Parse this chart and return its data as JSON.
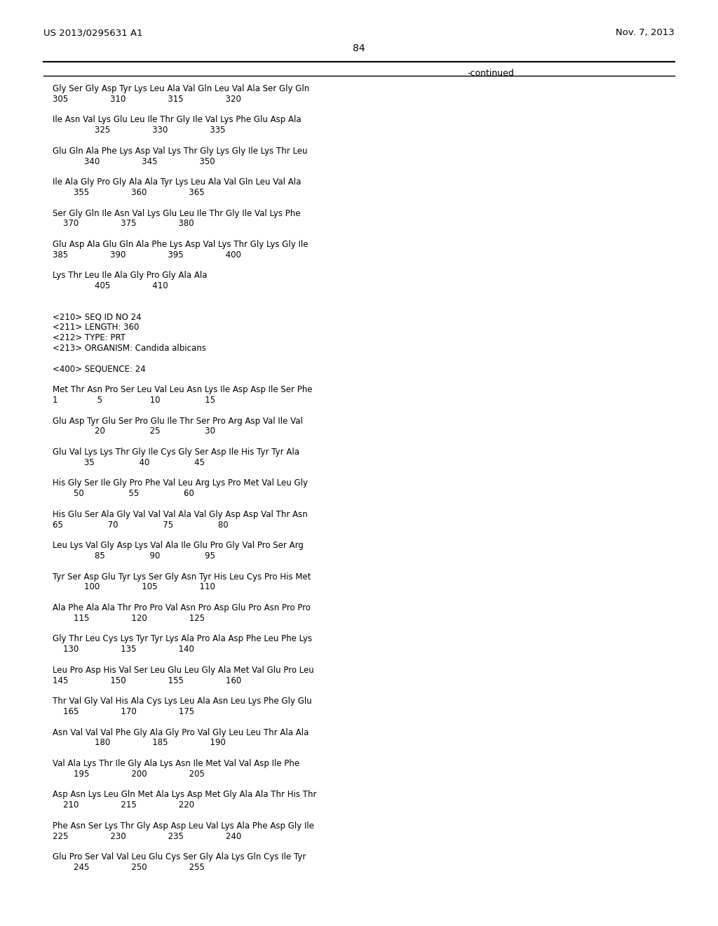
{
  "patent_number": "US 2013/0295631 A1",
  "date": "Nov. 7, 2013",
  "page_number": "84",
  "continued_label": "-continued",
  "background_color": "#ffffff",
  "text_color": "#000000",
  "content_lines": [
    "Gly Ser Gly Asp Tyr Lys Leu Ala Val Gln Leu Val Ala Ser Gly Gln",
    "305                310                315                320",
    "",
    "Ile Asn Val Lys Glu Leu Ile Thr Gly Ile Val Lys Phe Glu Asp Ala",
    "                325                330                335",
    "",
    "Glu Gln Ala Phe Lys Asp Val Lys Thr Gly Lys Gly Ile Lys Thr Leu",
    "            340                345                350",
    "",
    "Ile Ala Gly Pro Gly Ala Ala Tyr Lys Leu Ala Val Gln Leu Val Ala",
    "        355                360                365",
    "",
    "Ser Gly Gln Ile Asn Val Lys Glu Leu Ile Thr Gly Ile Val Lys Phe",
    "    370                375                380",
    "",
    "Glu Asp Ala Glu Gln Ala Phe Lys Asp Val Lys Thr Gly Lys Gly Ile",
    "385                390                395                400",
    "",
    "Lys Thr Leu Ile Ala Gly Pro Gly Ala Ala",
    "                405                410",
    "",
    "",
    "<210> SEQ ID NO 24",
    "<211> LENGTH: 360",
    "<212> TYPE: PRT",
    "<213> ORGANISM: Candida albicans",
    "",
    "<400> SEQUENCE: 24",
    "",
    "Met Thr Asn Pro Ser Leu Val Leu Asn Lys Ile Asp Asp Ile Ser Phe",
    "1               5                  10                 15",
    "",
    "Glu Asp Tyr Glu Ser Pro Glu Ile Thr Ser Pro Arg Asp Val Ile Val",
    "                20                 25                 30",
    "",
    "Glu Val Lys Lys Thr Gly Ile Cys Gly Ser Asp Ile His Tyr Tyr Ala",
    "            35                 40                 45",
    "",
    "His Gly Ser Ile Gly Pro Phe Val Leu Arg Lys Pro Met Val Leu Gly",
    "        50                 55                 60",
    "",
    "His Glu Ser Ala Gly Val Val Val Ala Val Gly Asp Asp Val Thr Asn",
    "65                 70                 75                 80",
    "",
    "Leu Lys Val Gly Asp Lys Val Ala Ile Glu Pro Gly Val Pro Ser Arg",
    "                85                 90                 95",
    "",
    "Tyr Ser Asp Glu Tyr Lys Ser Gly Asn Tyr His Leu Cys Pro His Met",
    "            100                105                110",
    "",
    "Ala Phe Ala Ala Thr Pro Pro Val Asn Pro Asp Glu Pro Asn Pro Pro",
    "        115                120                125",
    "",
    "Gly Thr Leu Cys Lys Tyr Tyr Lys Ala Pro Ala Asp Phe Leu Phe Lys",
    "    130                135                140",
    "",
    "Leu Pro Asp His Val Ser Leu Glu Leu Gly Ala Met Val Glu Pro Leu",
    "145                150                155                160",
    "",
    "Thr Val Gly Val His Ala Cys Lys Leu Ala Asn Leu Lys Phe Gly Glu",
    "    165                170                175",
    "",
    "Asn Val Val Val Phe Gly Ala Gly Pro Val Gly Leu Leu Thr Ala Ala",
    "                180                185                190",
    "",
    "Val Ala Lys Thr Ile Gly Ala Lys Asn Ile Met Val Val Asp Ile Phe",
    "        195                200                205",
    "",
    "Asp Asn Lys Leu Gln Met Ala Lys Asp Met Gly Ala Ala Thr His Thr",
    "    210                215                220",
    "",
    "Phe Asn Ser Lys Thr Gly Asp Asp Leu Val Lys Ala Phe Asp Gly Ile",
    "225                230                235                240",
    "",
    "Glu Pro Ser Val Val Leu Glu Cys Ser Gly Ala Lys Gln Cys Ile Tyr",
    "        245                250                255"
  ]
}
